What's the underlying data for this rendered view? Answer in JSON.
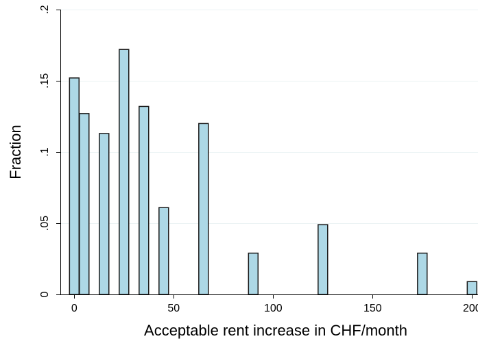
{
  "chart_data": {
    "type": "bar",
    "title": "",
    "xlabel": "Acceptable rent increase in CHF/month",
    "ylabel": "Fraction",
    "xlim": [
      -7,
      203
    ],
    "ylim": [
      0,
      0.2
    ],
    "x_ticks": [
      {
        "value": 0,
        "label": "0"
      },
      {
        "value": 50,
        "label": "50"
      },
      {
        "value": 100,
        "label": "100"
      },
      {
        "value": 150,
        "label": "150"
      },
      {
        "value": 200,
        "label": "200"
      }
    ],
    "y_ticks": [
      {
        "value": 0,
        "label": "0"
      },
      {
        "value": 0.05,
        "label": ".05"
      },
      {
        "value": 0.1,
        "label": ".1"
      },
      {
        "value": 0.15,
        "label": ".15"
      },
      {
        "value": 0.2,
        "label": ".2"
      }
    ],
    "grid": "horizontal",
    "bar_width": 4.8,
    "bars": [
      {
        "x": 0,
        "value": 0.152
      },
      {
        "x": 5,
        "value": 0.127
      },
      {
        "x": 15,
        "value": 0.113
      },
      {
        "x": 25,
        "value": 0.172
      },
      {
        "x": 35,
        "value": 0.132
      },
      {
        "x": 45,
        "value": 0.061
      },
      {
        "x": 65,
        "value": 0.12
      },
      {
        "x": 90,
        "value": 0.029
      },
      {
        "x": 125,
        "value": 0.049
      },
      {
        "x": 175,
        "value": 0.029
      },
      {
        "x": 200,
        "value": 0.009
      }
    ],
    "colors": {
      "bar_fill": "#add8e6",
      "bar_stroke": "#1a1a1a",
      "grid": "#eaf2f3",
      "axis": "#000000"
    }
  }
}
